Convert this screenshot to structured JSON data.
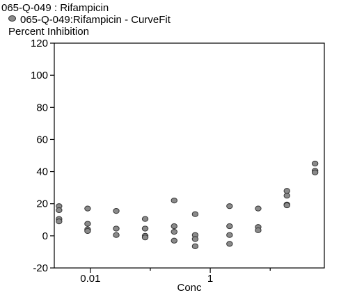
{
  "chart_data": {
    "type": "scatter",
    "title": "065-Q-049  : Rifampicin",
    "legend": [
      {
        "name": "065-Q-049:Rifampicin - CurveFit",
        "color": "#8a8a8a"
      }
    ],
    "ylabel": "Percent Inhibition",
    "xlabel": "Conc",
    "x_scale": "log",
    "xlim": [
      0.0025,
      80
    ],
    "ylim": [
      -20,
      120
    ],
    "y_ticks": [
      -20,
      0,
      20,
      40,
      60,
      80,
      100,
      120
    ],
    "x_ticks": [
      0.01,
      1
    ],
    "x_tick_labels": [
      "0.01",
      "1"
    ],
    "x_minor_ticks": [
      0.1,
      10
    ],
    "grid": false,
    "series": [
      {
        "name": "065-Q-049:Rifampicin - CurveFit",
        "points": [
          {
            "x": 0.003,
            "y": 18.5
          },
          {
            "x": 0.003,
            "y": 16
          },
          {
            "x": 0.003,
            "y": 10.5
          },
          {
            "x": 0.003,
            "y": 9
          },
          {
            "x": 0.009,
            "y": 17
          },
          {
            "x": 0.009,
            "y": 7.5
          },
          {
            "x": 0.009,
            "y": 4
          },
          {
            "x": 0.009,
            "y": 3
          },
          {
            "x": 0.027,
            "y": 15.5
          },
          {
            "x": 0.027,
            "y": 4.5
          },
          {
            "x": 0.027,
            "y": 0.5
          },
          {
            "x": 0.082,
            "y": 10.5
          },
          {
            "x": 0.082,
            "y": 4.5
          },
          {
            "x": 0.082,
            "y": 0
          },
          {
            "x": 0.082,
            "y": -1
          },
          {
            "x": 0.25,
            "y": 22
          },
          {
            "x": 0.25,
            "y": 6
          },
          {
            "x": 0.25,
            "y": 2.5
          },
          {
            "x": 0.25,
            "y": -3
          },
          {
            "x": 0.56,
            "y": 13.5
          },
          {
            "x": 0.56,
            "y": 0.5
          },
          {
            "x": 0.56,
            "y": -2
          },
          {
            "x": 0.56,
            "y": -6.5
          },
          {
            "x": 2.1,
            "y": 18.5
          },
          {
            "x": 2.1,
            "y": 6
          },
          {
            "x": 2.1,
            "y": 0.5
          },
          {
            "x": 2.1,
            "y": -5
          },
          {
            "x": 6.3,
            "y": 17
          },
          {
            "x": 6.3,
            "y": 5.5
          },
          {
            "x": 6.3,
            "y": 3.5
          },
          {
            "x": 19,
            "y": 28
          },
          {
            "x": 19,
            "y": 25
          },
          {
            "x": 19,
            "y": 19.5
          },
          {
            "x": 19,
            "y": 19
          },
          {
            "x": 56,
            "y": 45
          },
          {
            "x": 56,
            "y": 40.5
          },
          {
            "x": 56,
            "y": 39.5
          }
        ]
      }
    ]
  }
}
